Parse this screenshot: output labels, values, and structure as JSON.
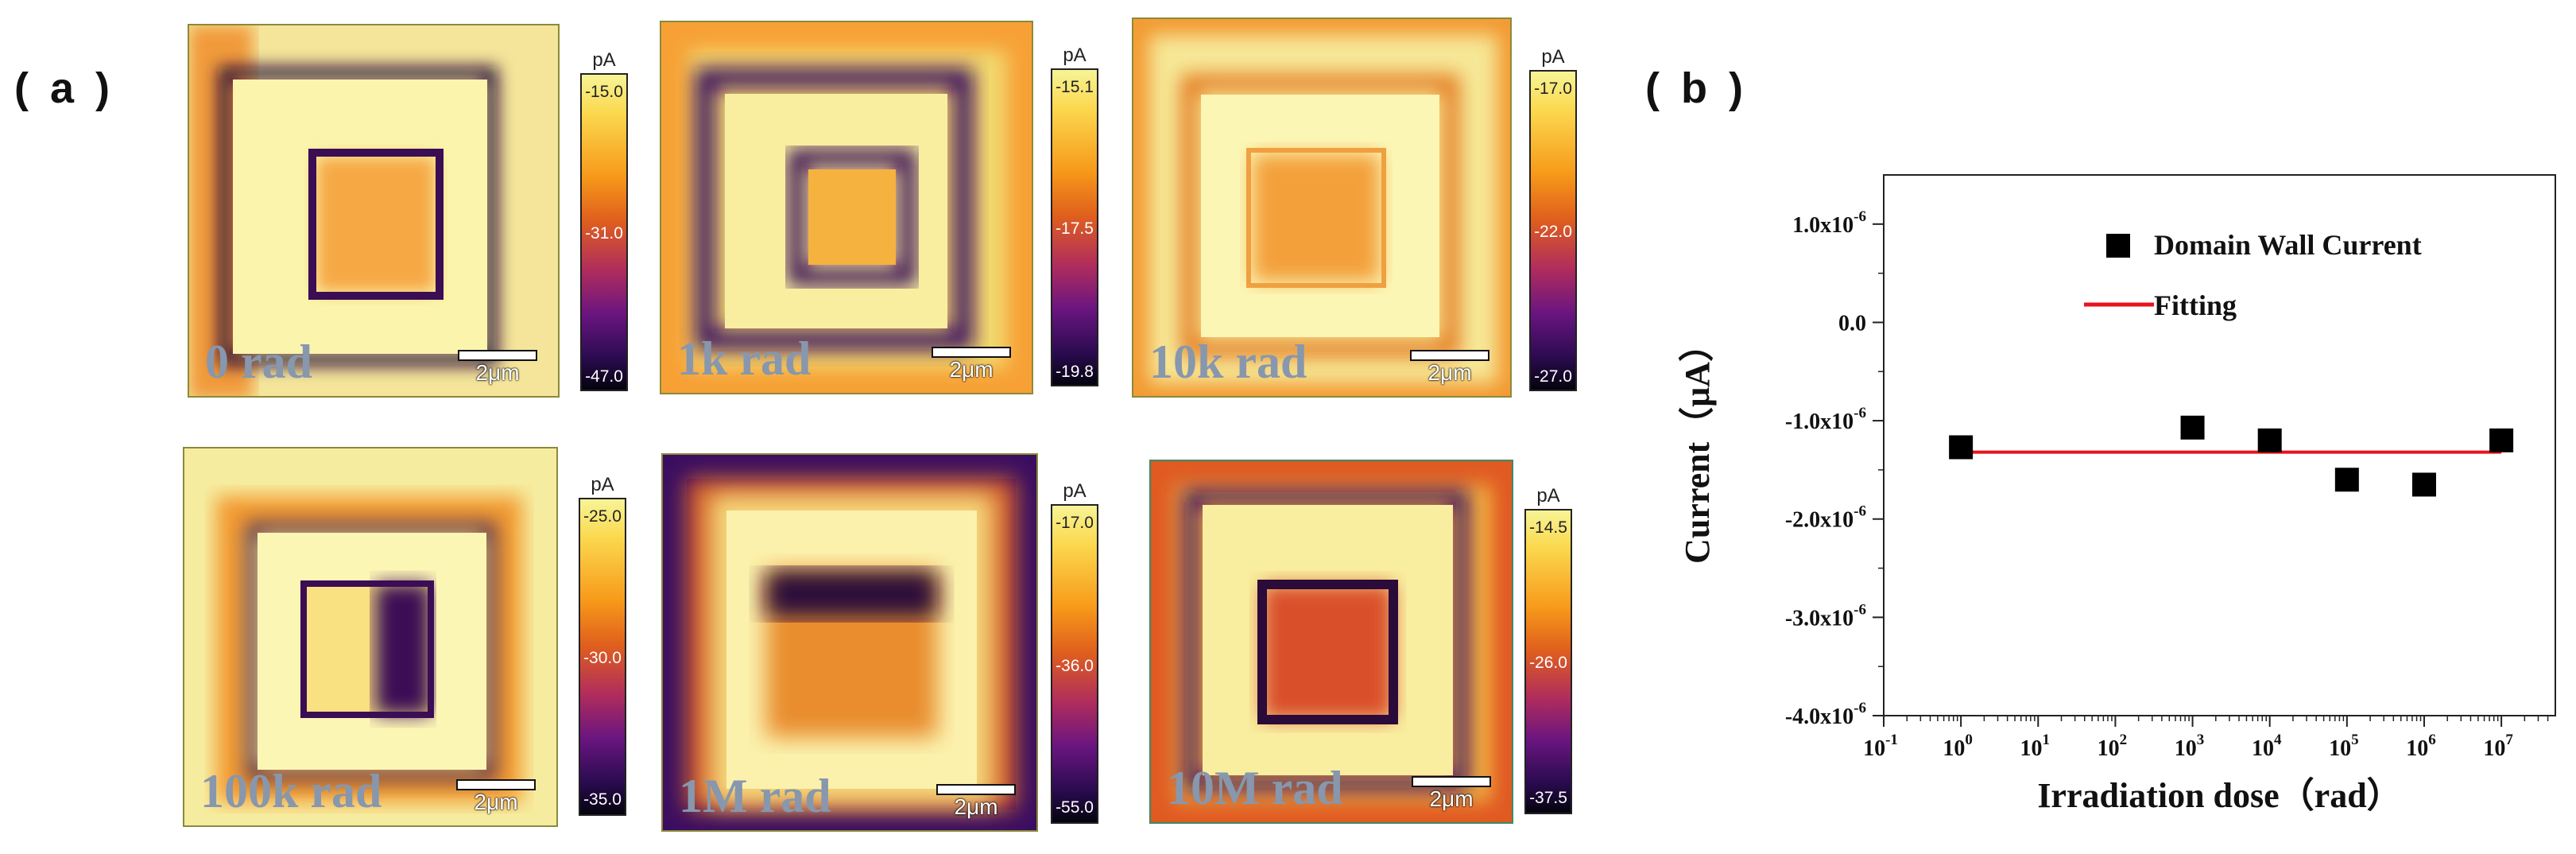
{
  "panel_labels": {
    "a": "( a )",
    "b": "( b )"
  },
  "maps": [
    {
      "dose": "0 rad",
      "scale": "2μm",
      "unit": "pA",
      "ticks": [
        "-15.0",
        "-31.0",
        "-47.0"
      ]
    },
    {
      "dose": "1k rad",
      "scale": "2μm",
      "unit": "pA",
      "ticks": [
        "-15.1",
        "-17.5",
        "-19.8"
      ]
    },
    {
      "dose": "10k rad",
      "scale": "2μm",
      "unit": "pA",
      "ticks": [
        "-17.0",
        "-22.0",
        "-27.0"
      ]
    },
    {
      "dose": "100k rad",
      "scale": "2μm",
      "unit": "pA",
      "ticks": [
        "-25.0",
        "-30.0",
        "-35.0"
      ]
    },
    {
      "dose": "1M rad",
      "scale": "2μm",
      "unit": "pA",
      "ticks": [
        "-17.0",
        "-36.0",
        "-55.0"
      ]
    },
    {
      "dose": "10M rad",
      "scale": "2μm",
      "unit": "pA",
      "ticks": [
        "-14.5",
        "-26.0",
        "-37.5"
      ]
    }
  ],
  "chart_data": {
    "type": "scatter",
    "xlabel": "Irradiation dose（rad）",
    "ylabel": "Current（μA）",
    "x_scale": "log",
    "xlim": [
      0.1,
      50000000
    ],
    "ylim": [
      -4e-06,
      1.5e-06
    ],
    "x_ticks": [
      {
        "base": "10",
        "exp": "-1"
      },
      {
        "base": "10",
        "exp": "0"
      },
      {
        "base": "10",
        "exp": "1"
      },
      {
        "base": "10",
        "exp": "2"
      },
      {
        "base": "10",
        "exp": "3"
      },
      {
        "base": "10",
        "exp": "4"
      },
      {
        "base": "10",
        "exp": "5"
      },
      {
        "base": "10",
        "exp": "6"
      },
      {
        "base": "10",
        "exp": "7"
      }
    ],
    "y_ticks": [
      {
        "mant": "1.0x10",
        "exp": "-6"
      },
      {
        "mant": "0.0",
        "exp": ""
      },
      {
        "mant": "-1.0x10",
        "exp": "-6"
      },
      {
        "mant": "-2.0x10",
        "exp": "-6"
      },
      {
        "mant": "-3.0x10",
        "exp": "-6"
      },
      {
        "mant": "-4.0x10",
        "exp": "-6"
      }
    ],
    "legend_position": "top-right",
    "series": [
      {
        "name": "Domain Wall Current",
        "color": "#000000",
        "marker": "square",
        "x": [
          1,
          1000,
          10000,
          100000,
          1000000,
          10000000
        ],
        "y": [
          -1.27e-06,
          -1.07e-06,
          -1.2e-06,
          -1.6e-06,
          -1.65e-06,
          -1.2e-06
        ]
      },
      {
        "name": "Fitting",
        "color": "#e8141c",
        "type": "line",
        "x": [
          1,
          10000000
        ],
        "y": [
          -1.32e-06,
          -1.32e-06
        ]
      }
    ]
  }
}
